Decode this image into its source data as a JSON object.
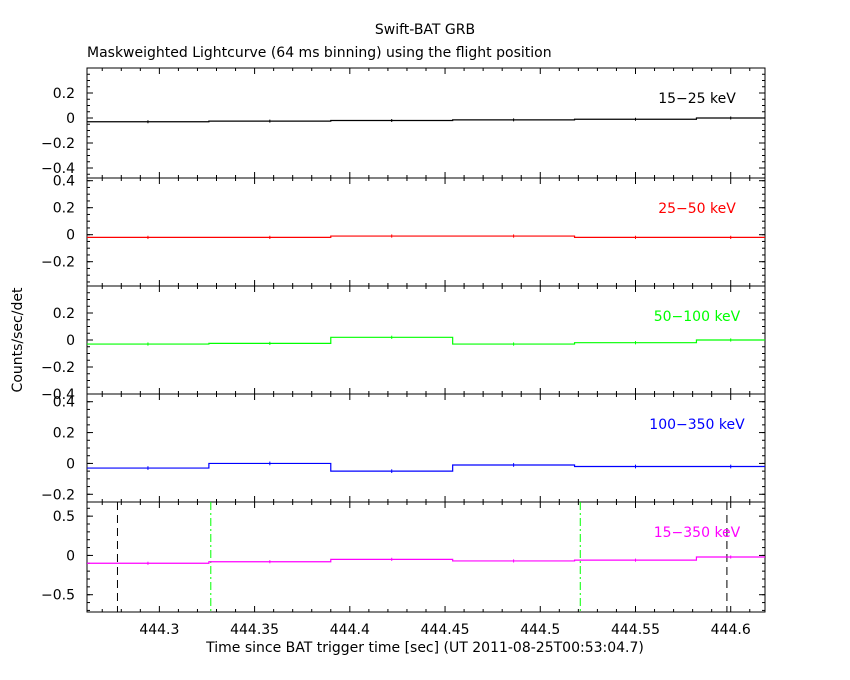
{
  "chart_data": {
    "type": "line",
    "title": "Swift-BAT GRB",
    "subtitle": "Maskweighted Lightcurve (64 ms binning) using the flight position",
    "ylabel": "Counts/sec/det",
    "xlabel": "Time since BAT trigger time [sec] (UT 2011-08-25T00:53:04.7)",
    "xlim": [
      444.262,
      444.618
    ],
    "x_ticks": [
      444.3,
      444.35,
      444.4,
      444.45,
      444.5,
      444.55,
      444.6
    ],
    "x_tick_labels": [
      "444.3",
      "444.35",
      "444.4",
      "444.45",
      "444.5",
      "444.55",
      "444.6"
    ],
    "bin_edges": [
      444.262,
      444.326,
      444.39,
      444.454,
      444.518,
      444.582,
      444.618
    ],
    "bin_centers": [
      444.294,
      444.358,
      444.422,
      444.486,
      444.55,
      444.6
    ],
    "panels": [
      {
        "label": "15−25 keV",
        "color": "#000000",
        "ylim": [
          -0.48,
          0.4
        ],
        "yticks": [
          0.2,
          0,
          -0.2,
          -0.4
        ],
        "ytick_labels": [
          "0.2",
          "0",
          "−0.2",
          "−0.4"
        ],
        "values": [
          -0.03,
          -0.025,
          -0.02,
          -0.015,
          -0.01,
          0.0
        ],
        "errors": [
          0.012,
          0.012,
          0.012,
          0.012,
          0.012,
          0.012
        ]
      },
      {
        "label": "25−50 keV",
        "color": "#ff0000",
        "ylim": [
          -0.38,
          0.42
        ],
        "yticks": [
          0.4,
          0.2,
          0,
          -0.2
        ],
        "ytick_labels": [
          "0.4",
          "0.2",
          "0",
          "−0.2"
        ],
        "values": [
          -0.02,
          -0.02,
          -0.01,
          -0.01,
          -0.02,
          -0.02
        ],
        "errors": [
          0.012,
          0.012,
          0.012,
          0.012,
          0.012,
          0.012
        ]
      },
      {
        "label": "50−100 keV",
        "color": "#00ff00",
        "ylim": [
          -0.4,
          0.4
        ],
        "yticks": [
          0.2,
          0,
          -0.2,
          -0.4
        ],
        "ytick_labels": [
          "0.2",
          "0",
          "−0.2",
          "−0.4"
        ],
        "values": [
          -0.03,
          -0.025,
          0.02,
          -0.03,
          -0.02,
          0.0
        ],
        "errors": [
          0.012,
          0.012,
          0.012,
          0.012,
          0.012,
          0.012
        ]
      },
      {
        "label": "100−350 keV",
        "color": "#0000ff",
        "ylim": [
          -0.25,
          0.45
        ],
        "yticks": [
          0.4,
          0.2,
          0,
          -0.2
        ],
        "ytick_labels": [
          "0.4",
          "0.2",
          "0",
          "−0.2"
        ],
        "values": [
          -0.03,
          0.0,
          -0.05,
          -0.01,
          -0.02,
          -0.02
        ],
        "errors": [
          0.012,
          0.012,
          0.012,
          0.012,
          0.012,
          0.012
        ]
      },
      {
        "label": "15−350 keV",
        "color": "#ff00ff",
        "ylim": [
          -0.72,
          0.68
        ],
        "yticks": [
          0.5,
          0,
          -0.5
        ],
        "ytick_labels": [
          "0.5",
          "0",
          "−0.5"
        ],
        "values": [
          -0.1,
          -0.08,
          -0.05,
          -0.07,
          -0.06,
          -0.02
        ],
        "errors": [
          0.02,
          0.02,
          0.02,
          0.02,
          0.02,
          0.02
        ],
        "markers": [
          {
            "x": 444.278,
            "style": "dashed",
            "color": "#000000"
          },
          {
            "x": 444.327,
            "style": "dashdot",
            "color": "#00ff00"
          },
          {
            "x": 444.521,
            "style": "dashdot",
            "color": "#00ff00"
          },
          {
            "x": 444.598,
            "style": "dashed",
            "color": "#000000"
          }
        ]
      }
    ]
  }
}
